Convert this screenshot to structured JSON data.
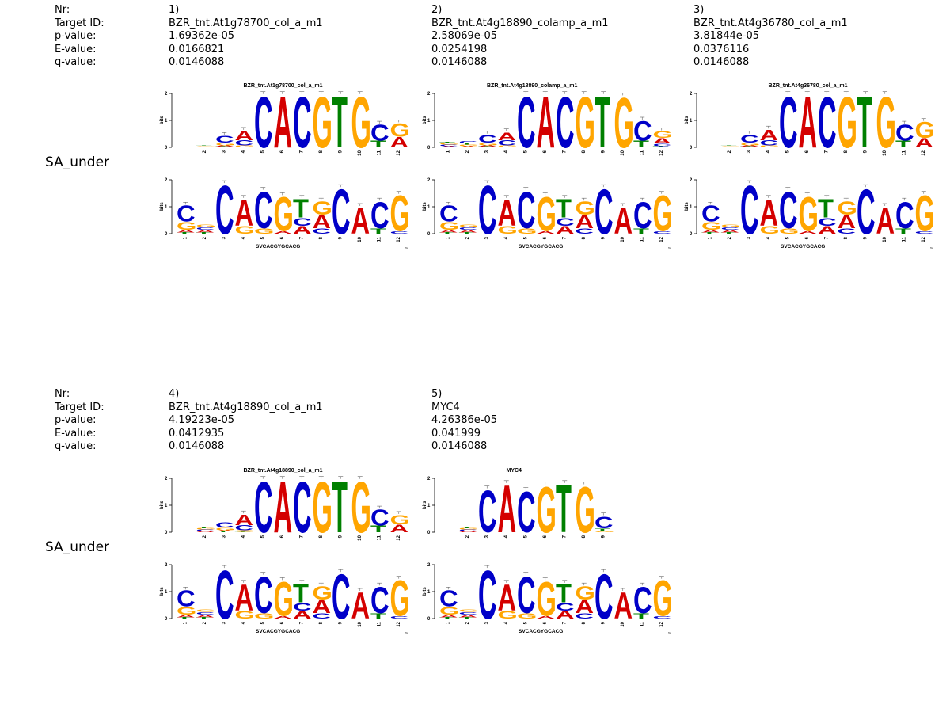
{
  "field_labels": [
    "Nr:",
    "Target ID:",
    "p-value:",
    "E-value:",
    "q-value:"
  ],
  "query": {
    "name": "SA_under",
    "consensus": "SVCACGYGCACG",
    "columns": [
      {
        "A": 0.1,
        "C": 0.6,
        "G": 0.3,
        "T": 0.05
      },
      {
        "A": 0.1,
        "C": 0.1,
        "G": 0.1,
        "T": 0.05
      },
      {
        "A": 0.0,
        "C": 1.85,
        "G": 0.0,
        "T": 0.0
      },
      {
        "A": 1.0,
        "C": 0.0,
        "G": 0.3,
        "T": 0.0
      },
      {
        "A": 0.0,
        "C": 1.4,
        "G": 0.2,
        "T": 0.0
      },
      {
        "A": 0.1,
        "C": 0.0,
        "G": 1.3,
        "T": 0.0
      },
      {
        "A": 0.3,
        "C": 0.3,
        "G": 0.0,
        "T": 0.7
      },
      {
        "A": 0.5,
        "C": 0.2,
        "G": 0.5,
        "T": 0.0
      },
      {
        "A": 0.0,
        "C": 1.7,
        "G": 0.0,
        "T": 0.0
      },
      {
        "A": 1.0,
        "C": 0.0,
        "G": 0.0,
        "T": 0.0
      },
      {
        "A": 0.0,
        "C": 1.0,
        "G": 0.0,
        "T": 0.2
      },
      {
        "A": 0.0,
        "C": 0.1,
        "G": 1.35,
        "T": 0.0
      }
    ]
  },
  "rows": [
    {
      "query_name": "SA_under",
      "matches": [
        {
          "nr": "1)",
          "target_id": "BZR_tnt.At1g78700_col_a_m1",
          "p_value": "1.69362e-05",
          "e_value": "0.0166821",
          "q_value": "0.0146088",
          "logo_title": "BZR_tnt.At1g78700_col_a_m1",
          "query_offset": 1,
          "show_stamp": true,
          "columns": [
            {
              "A": 0.02,
              "C": 0.02,
              "G": 0.02,
              "T": 0.02
            },
            {
              "A": 0.05,
              "C": 0.25,
              "G": 0.1,
              "T": 0.03
            },
            {
              "A": 0.35,
              "C": 0.2,
              "G": 0.05,
              "T": 0.02
            },
            {
              "A": 0.0,
              "C": 1.95,
              "G": 0.0,
              "T": 0.0
            },
            {
              "A": 1.95,
              "C": 0.0,
              "G": 0.0,
              "T": 0.0
            },
            {
              "A": 0.0,
              "C": 1.95,
              "G": 0.0,
              "T": 0.0
            },
            {
              "A": 0.0,
              "C": 0.0,
              "G": 1.95,
              "T": 0.0
            },
            {
              "A": 0.0,
              "C": 0.0,
              "G": 0.0,
              "T": 1.95
            },
            {
              "A": 0.0,
              "C": 0.0,
              "G": 1.95,
              "T": 0.0
            },
            {
              "A": 0.0,
              "C": 0.6,
              "G": 0.0,
              "T": 0.25
            },
            {
              "A": 0.4,
              "C": 0.0,
              "G": 0.5,
              "T": 0.0
            }
          ]
        },
        {
          "nr": "2)",
          "target_id": "BZR_tnt.At4g18890_colamp_a_m1",
          "p_value": "2.58069e-05",
          "e_value": "0.0254198",
          "q_value": "0.0146088",
          "logo_title": "BZR_tnt.At4g18890_colamp_a_m1",
          "query_offset": 0,
          "show_stamp": true,
          "columns": [
            {
              "A": 0.05,
              "C": 0.05,
              "G": 0.05,
              "T": 0.05
            },
            {
              "A": 0.05,
              "C": 0.1,
              "G": 0.05,
              "T": 0.05
            },
            {
              "A": 0.05,
              "C": 0.3,
              "G": 0.1,
              "T": 0.03
            },
            {
              "A": 0.3,
              "C": 0.2,
              "G": 0.05,
              "T": 0.02
            },
            {
              "A": 0.0,
              "C": 1.95,
              "G": 0.0,
              "T": 0.0
            },
            {
              "A": 1.95,
              "C": 0.0,
              "G": 0.0,
              "T": 0.0
            },
            {
              "A": 0.0,
              "C": 1.95,
              "G": 0.0,
              "T": 0.0
            },
            {
              "A": 0.0,
              "C": 0.0,
              "G": 1.95,
              "T": 0.0
            },
            {
              "A": 0.0,
              "C": 0.0,
              "G": 0.0,
              "T": 1.95
            },
            {
              "A": 0.0,
              "C": 0.0,
              "G": 1.9,
              "T": 0.0
            },
            {
              "A": 0.0,
              "C": 0.75,
              "G": 0.0,
              "T": 0.25
            },
            {
              "A": 0.2,
              "C": 0.1,
              "G": 0.25,
              "T": 0.05
            }
          ]
        },
        {
          "nr": "3)",
          "target_id": "BZR_tnt.At4g36780_col_a_m1",
          "p_value": "3.81844e-05",
          "e_value": "0.0376116",
          "q_value": "0.0146088",
          "logo_title": "BZR_tnt.At4g36780_col_a_m1",
          "query_offset": 1,
          "show_stamp": true,
          "columns": [
            {
              "A": 0.02,
              "C": 0.02,
              "G": 0.02,
              "T": 0.02
            },
            {
              "A": 0.05,
              "C": 0.3,
              "G": 0.1,
              "T": 0.03
            },
            {
              "A": 0.4,
              "C": 0.2,
              "G": 0.05,
              "T": 0.02
            },
            {
              "A": 0.0,
              "C": 1.95,
              "G": 0.0,
              "T": 0.0
            },
            {
              "A": 1.95,
              "C": 0.0,
              "G": 0.0,
              "T": 0.0
            },
            {
              "A": 0.0,
              "C": 1.95,
              "G": 0.0,
              "T": 0.0
            },
            {
              "A": 0.0,
              "C": 0.0,
              "G": 1.95,
              "T": 0.0
            },
            {
              "A": 0.0,
              "C": 0.0,
              "G": 0.0,
              "T": 1.95
            },
            {
              "A": 0.0,
              "C": 0.0,
              "G": 1.95,
              "T": 0.0
            },
            {
              "A": 0.0,
              "C": 0.6,
              "G": 0.0,
              "T": 0.25
            },
            {
              "A": 0.35,
              "C": 0.0,
              "G": 0.6,
              "T": 0.0
            }
          ]
        }
      ]
    },
    {
      "query_name": "SA_under",
      "matches": [
        {
          "nr": "4)",
          "target_id": "BZR_tnt.At4g18890_col_a_m1",
          "p_value": "4.19223e-05",
          "e_value": "0.0412935",
          "q_value": "0.0146088",
          "logo_title": "BZR_tnt.At4g18890_col_a_m1",
          "query_offset": 1,
          "show_stamp": true,
          "columns": [
            {
              "A": 0.05,
              "C": 0.05,
              "G": 0.05,
              "T": 0.05
            },
            {
              "A": 0.05,
              "C": 0.2,
              "G": 0.1,
              "T": 0.03
            },
            {
              "A": 0.4,
              "C": 0.2,
              "G": 0.05,
              "T": 0.02
            },
            {
              "A": 0.0,
              "C": 1.95,
              "G": 0.0,
              "T": 0.0
            },
            {
              "A": 1.95,
              "C": 0.0,
              "G": 0.0,
              "T": 0.0
            },
            {
              "A": 0.0,
              "C": 1.95,
              "G": 0.0,
              "T": 0.0
            },
            {
              "A": 0.0,
              "C": 0.0,
              "G": 1.95,
              "T": 0.0
            },
            {
              "A": 0.0,
              "C": 0.0,
              "G": 0.0,
              "T": 1.95
            },
            {
              "A": 0.0,
              "C": 0.0,
              "G": 1.95,
              "T": 0.0
            },
            {
              "A": 0.0,
              "C": 0.6,
              "G": 0.0,
              "T": 0.25
            },
            {
              "A": 0.3,
              "C": 0.0,
              "G": 0.35,
              "T": 0.0
            }
          ]
        },
        {
          "nr": "5)",
          "target_id": "MYC4",
          "p_value": "4.26386e-05",
          "e_value": "0.041999",
          "q_value": "0.0146088",
          "logo_title": "MYC4",
          "query_offset": 1,
          "show_stamp": true,
          "columns": [
            {
              "A": 0.05,
              "C": 0.05,
              "G": 0.05,
              "T": 0.05
            },
            {
              "A": 0.0,
              "C": 1.6,
              "G": 0.0,
              "T": 0.0
            },
            {
              "A": 1.8,
              "C": 0.0,
              "G": 0.0,
              "T": 0.0
            },
            {
              "A": 0.0,
              "C": 1.55,
              "G": 0.0,
              "T": 0.0
            },
            {
              "A": 0.0,
              "C": 0.0,
              "G": 1.75,
              "T": 0.0
            },
            {
              "A": 0.0,
              "C": 0.0,
              "G": 0.0,
              "T": 1.8
            },
            {
              "A": 0.0,
              "C": 0.0,
              "G": 1.75,
              "T": 0.0
            },
            {
              "A": 0.0,
              "C": 0.45,
              "G": 0.05,
              "T": 0.1
            }
          ]
        }
      ]
    }
  ],
  "colors": {
    "A": "#d40000",
    "C": "#0000c8",
    "G": "#ffa500",
    "T": "#008000"
  },
  "stamp_text": "Tomtom 17.29.54 13.59"
}
